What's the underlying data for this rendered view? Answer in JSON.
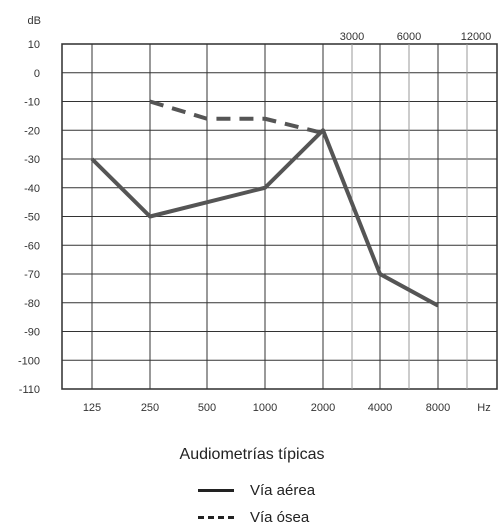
{
  "chart_data": {
    "type": "line",
    "y_unit_label": "dB",
    "x_unit_label": "Hz",
    "x_categories": [
      "125",
      "250",
      "500",
      "1000",
      "2000",
      "4000",
      "8000"
    ],
    "x_top_labels": [
      "3000",
      "6000",
      "12000"
    ],
    "y_ticks": [
      "10",
      "0",
      "-10",
      "-20",
      "-30",
      "-40",
      "-50",
      "-60",
      "-70",
      "-80",
      "-90",
      "-100",
      "-110"
    ],
    "ylim": [
      -110,
      10
    ],
    "grid": true,
    "series": [
      {
        "name": "Vía aérea",
        "style": "solid",
        "x": [
          "125",
          "250",
          "1000",
          "2000",
          "4000",
          "8000"
        ],
        "values": [
          -30,
          -50,
          -40,
          -20,
          -70,
          -81
        ]
      },
      {
        "name": "Vía ósea",
        "style": "dashed",
        "x": [
          "250",
          "500",
          "1000",
          "2000"
        ],
        "values": [
          -10,
          -16,
          -16,
          -21
        ]
      }
    ],
    "legend_title": "Audiometrías típicas",
    "legend_position": "bottom-center",
    "line_color": "#555555"
  }
}
